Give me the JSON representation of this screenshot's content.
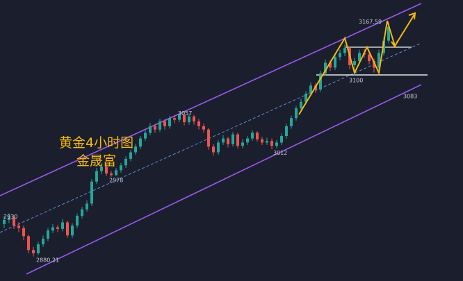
{
  "chart_data": {
    "type": "candlestick",
    "title": "黄金4小时图",
    "subtitle": "金晟富",
    "up_color": "#26a69a",
    "down_color": "#ef5350",
    "ylim": [
      2850,
      3195
    ],
    "open": [
      2920,
      2925,
      2928,
      2918,
      2915,
      2905,
      2888,
      2884,
      2895,
      2902,
      2912,
      2916,
      2914,
      2922,
      2906,
      2918,
      2930,
      2938,
      2945,
      2972,
      2985,
      2990,
      2982,
      2980,
      2986,
      2992,
      3000,
      3008,
      3015,
      3025,
      3032,
      3040,
      3036,
      3046,
      3040,
      3050,
      3048,
      3054,
      3045,
      3052,
      3046,
      3040,
      3036,
      3015,
      3008,
      3020,
      3025,
      3018,
      3030,
      3016,
      3020,
      3025,
      3032,
      3024,
      3020,
      3022,
      3016,
      3020,
      3028,
      3040,
      3050,
      3062,
      3070,
      3080,
      3090,
      3085,
      3105,
      3118,
      3112,
      3125,
      3130,
      3136,
      3115,
      3120,
      3130,
      3128,
      3120,
      3112,
      3130,
      3145
    ],
    "high": [
      2930,
      2933,
      2931,
      2922,
      2918,
      2907,
      2892,
      2898,
      2906,
      2915,
      2920,
      2919,
      2926,
      2924,
      2921,
      2933,
      2941,
      2949,
      2975,
      2989,
      2995,
      2993,
      2985,
      2989,
      2995,
      3003,
      3011,
      3018,
      3028,
      3036,
      3044,
      3043,
      3049,
      3049,
      3053,
      3054,
      3057,
      3056,
      3055,
      3054,
      3049,
      3043,
      3038,
      3018,
      3023,
      3029,
      3027,
      3033,
      3032,
      3024,
      3028,
      3035,
      3034,
      3027,
      3026,
      3025,
      3023,
      3031,
      3043,
      3053,
      3065,
      3074,
      3083,
      3094,
      3093,
      3108,
      3122,
      3121,
      3129,
      3134,
      3140,
      3138,
      3124,
      3134,
      3135,
      3131,
      3123,
      3134,
      3149,
      3167.59
    ],
    "low": [
      2915,
      2921,
      2914,
      2910,
      2900,
      2884,
      2880.21,
      2882,
      2892,
      2899,
      2909,
      2910,
      2911,
      2903,
      2903,
      2915,
      2927,
      2935,
      2942,
      2969,
      2981,
      2979,
      2978,
      2979,
      2983,
      2989,
      2997,
      3005,
      3012,
      3022,
      3029,
      3032,
      3033,
      3036,
      3037,
      3044,
      3045,
      3041,
      3042,
      3042,
      3036,
      3032,
      3011,
      3004,
      3005,
      3017,
      3014,
      3015,
      3013,
      3013,
      3017,
      3022,
      3021,
      3017,
      3017,
      3012,
      3013,
      3017,
      3025,
      3037,
      3047,
      3059,
      3067,
      3077,
      3081,
      3082,
      3102,
      3108,
      3109,
      3121,
      3126,
      3110,
      3102,
      3116,
      3124,
      3116,
      3106,
      3109,
      3127,
      3142
    ],
    "close": [
      2925,
      2928,
      2918,
      2915,
      2905,
      2888,
      2884,
      2895,
      2902,
      2912,
      2916,
      2914,
      2922,
      2906,
      2918,
      2930,
      2938,
      2945,
      2972,
      2985,
      2990,
      2982,
      2980,
      2986,
      2992,
      3000,
      3008,
      3015,
      3025,
      3032,
      3040,
      3036,
      3046,
      3040,
      3050,
      3048,
      3054,
      3045,
      3052,
      3046,
      3040,
      3036,
      3015,
      3008,
      3020,
      3025,
      3018,
      3030,
      3016,
      3020,
      3025,
      3032,
      3024,
      3020,
      3022,
      3016,
      3020,
      3028,
      3040,
      3050,
      3062,
      3070,
      3080,
      3090,
      3085,
      3105,
      3118,
      3112,
      3125,
      3130,
      3136,
      3115,
      3120,
      3130,
      3128,
      3120,
      3112,
      3130,
      3145,
      3162
    ],
    "price_labels": [
      2930,
      2880.21,
      2978,
      3057,
      3012,
      3100,
      3083,
      3167.59
    ]
  }
}
